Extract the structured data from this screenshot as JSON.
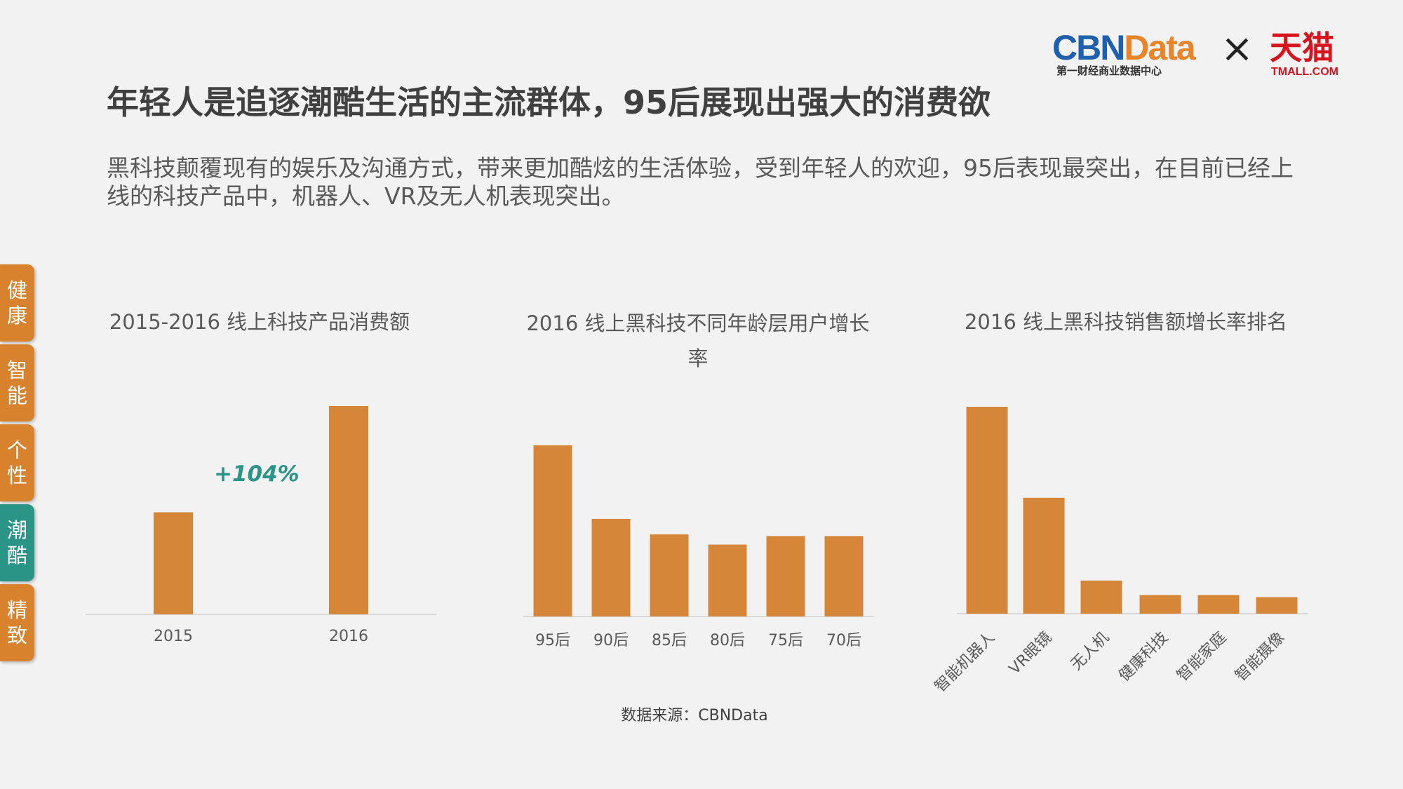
{
  "brand": {
    "cbn_part1": "CBN",
    "cbn_part2": "Data",
    "cbn_sub": "第一财经商业数据中心",
    "times": "×",
    "tmall": "天猫",
    "tmall_sub": "TMALL.COM",
    "cbn_blue": "#1f5fae",
    "cbn_orange": "#e8842a",
    "tmall_red": "#d7141d"
  },
  "headline": "年轻人是追逐潮酷生活的主流群体，95后展现出强大的消费欲",
  "description": "黑科技颠覆现有的娱乐及沟通方式，带来更加酷炫的生活体验，受到年轻人的欢迎，95后表现最突出，在目前已经上线的科技产品中，机器人、VR及无人机表现突出。",
  "side_tabs": [
    {
      "label": "健\n康",
      "color": "#d8822e",
      "active": false
    },
    {
      "label": "智\n能",
      "color": "#d8822e",
      "active": false
    },
    {
      "label": "个\n性",
      "color": "#d8822e",
      "active": false
    },
    {
      "label": "潮\n酷",
      "color": "#2a9486",
      "active": true
    },
    {
      "label": "精\n致",
      "color": "#d8822e",
      "active": false
    }
  ],
  "bar_color": "#d68638",
  "source": "数据来源：CBNData",
  "chart_data": [
    {
      "type": "bar",
      "title": "2015-2016 线上科技产品消费额",
      "categories": [
        "2015",
        "2016"
      ],
      "values": [
        49,
        100
      ],
      "annotation": "+104%",
      "ylim": [
        0,
        100
      ]
    },
    {
      "type": "bar",
      "title": "2016 线上黑科技不同年龄层用户增长率",
      "categories": [
        "95后",
        "90后",
        "85后",
        "80后",
        "75后",
        "70后"
      ],
      "values": [
        100,
        57,
        48,
        42,
        47,
        47
      ],
      "ylim": [
        0,
        100
      ]
    },
    {
      "type": "bar",
      "title": "2016 线上黑科技销售额增长率排名",
      "categories": [
        "智能机器人",
        "VR眼镜",
        "无人机",
        "健康科技",
        "智能家庭",
        "智能摄像"
      ],
      "values": [
        100,
        56,
        16,
        9,
        9,
        8
      ],
      "ylim": [
        0,
        100
      ]
    }
  ]
}
